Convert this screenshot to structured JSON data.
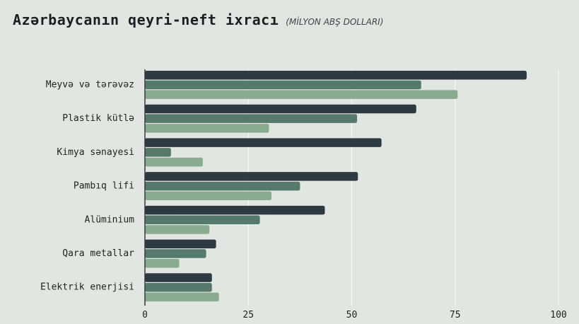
{
  "title": "Azərbaycanın qeyri-neft ixracı",
  "subtitle": "(MİLYON ABŞ DOLLARI)",
  "colors": {
    "background": "#e2e6e1",
    "grid": "#f7f8f6",
    "series": [
      "#2e3a42",
      "#557a6c",
      "#89ab8e"
    ]
  },
  "chart_data": {
    "type": "bar",
    "orientation": "horizontal",
    "categories": [
      "Meyvə və tərəvəz",
      "Plastik kütlə",
      "Kimya sənayesi",
      "Pambıq lifi",
      "Alüminium",
      "Qara metallar",
      "Elektrik enerjisi"
    ],
    "series": [
      {
        "values": [
          92.3,
          65.6,
          57.2,
          51.5,
          43.5,
          17.2,
          16.2
        ]
      },
      {
        "values": [
          66.8,
          51.3,
          6.3,
          37.5,
          27.8,
          14.8,
          16.2
        ]
      },
      {
        "values": [
          75.6,
          30.0,
          14.0,
          30.6,
          15.6,
          8.3,
          17.9
        ]
      }
    ],
    "xlim": [
      0,
      100
    ],
    "xticks": [
      0,
      25,
      50,
      75,
      100
    ],
    "xtick_labels": [
      "0",
      "25",
      "50",
      "75",
      "100"
    ],
    "grid": true
  }
}
